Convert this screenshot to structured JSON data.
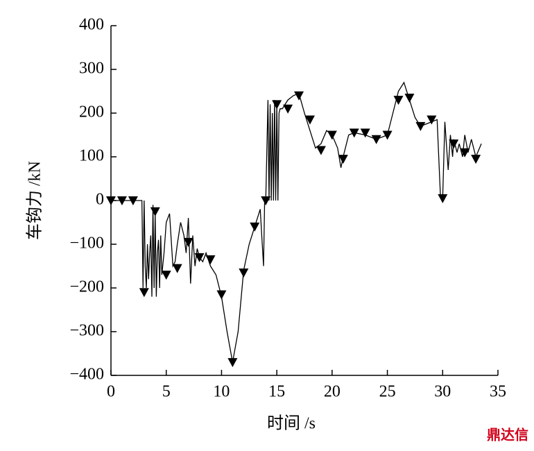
{
  "chart_data": {
    "type": "line",
    "xlabel": "时间 /s",
    "ylabel": "车钩力 /kN",
    "xlim": [
      0,
      35
    ],
    "xticks": [
      0,
      5,
      10,
      15,
      20,
      25,
      30,
      35
    ],
    "ylim": [
      -400,
      400
    ],
    "yticks": [
      {
        "value": -400,
        "label": "−400"
      },
      {
        "value": -300,
        "label": "−300"
      },
      {
        "value": -200,
        "label": "−200"
      },
      {
        "value": -100,
        "label": "−100"
      },
      0,
      100,
      200,
      300,
      400
    ],
    "series": [
      {
        "color": "#000000",
        "x": [
          0,
          2.8,
          2.9,
          3.0,
          3.1,
          3.2,
          3.3,
          3.4,
          3.5,
          3.6,
          3.7,
          3.8,
          3.9,
          4.0,
          4.1,
          4.2,
          4.3,
          4.4,
          4.5,
          4.6,
          4.8,
          5.0,
          5.3,
          5.6,
          5.8,
          6.0,
          6.3,
          6.6,
          6.8,
          7.0,
          7.2,
          7.4,
          7.6,
          7.8,
          8.0,
          8.3,
          8.6,
          9.0,
          9.5,
          10.0,
          10.5,
          11.0,
          11.5,
          12.0,
          12.5,
          13.0,
          13.5,
          13.8,
          13.9,
          14.0,
          14.2,
          14.3,
          14.4,
          14.5,
          14.6,
          14.7,
          14.8,
          14.9,
          15.0,
          15.1,
          15.2,
          15.3,
          15.5,
          16.0,
          16.5,
          17.0,
          17.5,
          18.0,
          18.5,
          19.0,
          19.5,
          20.0,
          20.5,
          20.8,
          21.0,
          21.5,
          22.0,
          23.0,
          24.0,
          25.0,
          25.5,
          26.0,
          26.5,
          27.0,
          27.5,
          28.0,
          29.0,
          29.5,
          29.8,
          30.0,
          30.2,
          30.5,
          30.7,
          30.9,
          31.0,
          31.3,
          31.5,
          31.8,
          32.0,
          32.3,
          32.6,
          33.0,
          33.5
        ],
        "values": [
          0,
          0,
          -200,
          0,
          -150,
          -200,
          -100,
          -180,
          -120,
          -80,
          -220,
          -10,
          -200,
          -30,
          -220,
          -120,
          -90,
          -200,
          -80,
          -170,
          -120,
          -50,
          -30,
          -150,
          -140,
          -100,
          -50,
          -80,
          -120,
          -40,
          -190,
          -80,
          -150,
          -110,
          -130,
          -140,
          -120,
          -150,
          -170,
          -220,
          -300,
          -370,
          -300,
          -160,
          -100,
          -60,
          -20,
          -150,
          0,
          0,
          230,
          0,
          220,
          0,
          200,
          0,
          230,
          0,
          220,
          0,
          200,
          210,
          210,
          230,
          240,
          245,
          200,
          160,
          120,
          130,
          160,
          150,
          120,
          75,
          100,
          150,
          155,
          150,
          140,
          150,
          200,
          250,
          270,
          230,
          190,
          170,
          180,
          185,
          10,
          5,
          180,
          70,
          150,
          100,
          140,
          110,
          130,
          100,
          150,
          110,
          140,
          100,
          130
        ]
      },
      {
        "color": "#000000",
        "marker": "triangle-down",
        "line": false,
        "x": [
          0,
          1,
          2,
          3,
          4,
          5,
          6,
          7,
          8,
          9,
          10,
          11,
          12,
          13,
          14,
          15,
          16,
          17,
          18,
          19,
          20,
          21,
          22,
          23,
          24,
          25,
          26,
          27,
          28,
          29,
          30,
          31,
          32,
          33
        ],
        "values": [
          0,
          0,
          0,
          -210,
          -25,
          -170,
          -155,
          -95,
          -130,
          -135,
          -215,
          -370,
          -165,
          -60,
          0,
          220,
          210,
          240,
          185,
          115,
          150,
          95,
          155,
          155,
          140,
          150,
          230,
          235,
          170,
          185,
          5,
          130,
          110,
          95
        ]
      }
    ]
  },
  "watermark": "鼎达信"
}
